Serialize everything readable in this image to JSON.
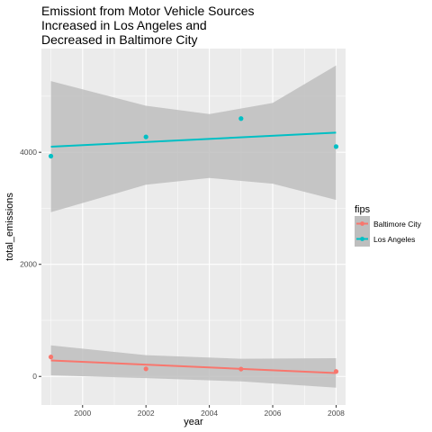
{
  "chart_data": {
    "type": "scatter",
    "title_lines": [
      "Emissiont from Motor Vehicle Sources",
      "Increased in Los Angeles and",
      "Decreased in Baltimore City"
    ],
    "xlabel": "year",
    "ylabel": "total_emissions",
    "xlim": [
      1998.7,
      2008.3
    ],
    "ylim": [
      -510,
      5850
    ],
    "x_ticks": [
      2000,
      2002,
      2004,
      2006,
      2008
    ],
    "y_ticks": [
      0,
      2000,
      4000
    ],
    "grid": true,
    "legend_title": "fips",
    "legend_position": "right",
    "series": [
      {
        "name": "Baltimore City",
        "color": "#F8766D",
        "x": [
          1999,
          2002,
          2005,
          2008
        ],
        "y": [
          347,
          135,
          131,
          88
        ],
        "trend": {
          "x": [
            1999,
            2008
          ],
          "y": [
            285,
            60
          ]
        },
        "band": {
          "x": [
            1999,
            2002,
            2005,
            2008
          ],
          "lower": [
            20,
            -30,
            -90,
            -200
          ],
          "upper": [
            555,
            380,
            315,
            325
          ]
        }
      },
      {
        "name": "Los Angeles",
        "color": "#00BFC4",
        "x": [
          1999,
          2002,
          2005,
          2008
        ],
        "y": [
          3931,
          4274,
          4601,
          4101
        ],
        "trend": {
          "x": [
            1999,
            2008
          ],
          "y": [
            4100,
            4350
          ]
        },
        "band": {
          "x": [
            1999,
            2002,
            2004,
            2006,
            2008
          ],
          "lower": [
            2930,
            3420,
            3540,
            3440,
            3150
          ],
          "upper": [
            5270,
            4830,
            4680,
            4880,
            5550
          ]
        }
      }
    ]
  },
  "colors": {
    "panel_bg": "#EBEBEB",
    "grid_major": "#FFFFFF",
    "band_fill": "#BEBEBE"
  }
}
